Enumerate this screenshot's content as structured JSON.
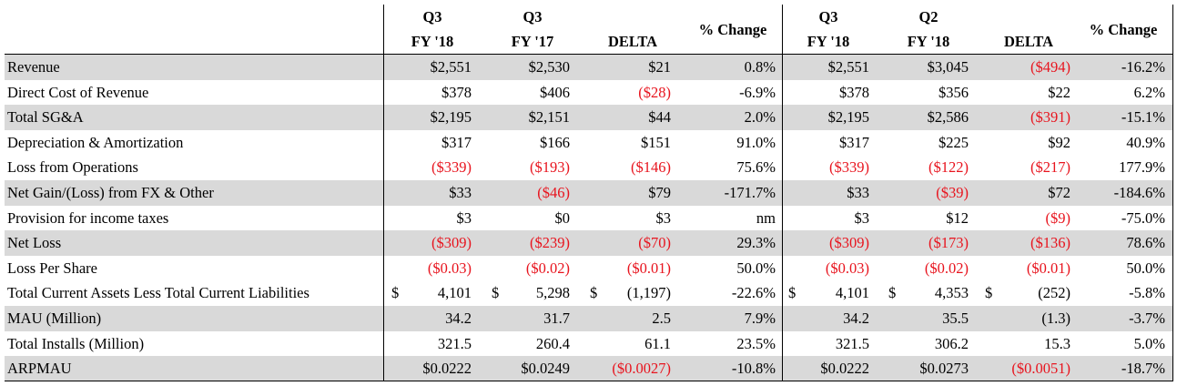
{
  "colors": {
    "shade": "#d9d9d9",
    "negative": "#e8141e",
    "rule": "#000000"
  },
  "headers": {
    "q3fy18_a_l1": "Q3",
    "q3fy18_a_l2": "FY '18",
    "q3fy17_l1": "Q3",
    "q3fy17_l2": "FY '17",
    "delta_a": "DELTA",
    "pct_a": "% Change",
    "q3fy18_b_l1": "Q3",
    "q3fy18_b_l2": "FY '18",
    "q2fy18_l1": "Q2",
    "q2fy18_l2": "FY '18",
    "delta_b": "DELTA",
    "pct_b": "% Change"
  },
  "rows": [
    {
      "label": "Revenue",
      "shade": true,
      "v": [
        "$2,551",
        "$2,530",
        "$21",
        "0.8%",
        "$2,551",
        "$3,045",
        "($494)",
        "-16.2%"
      ],
      "neg": [
        false,
        false,
        false,
        false,
        false,
        false,
        true,
        false
      ]
    },
    {
      "label": "Direct Cost of Revenue",
      "shade": false,
      "v": [
        "$378",
        "$406",
        "($28)",
        "-6.9%",
        "$378",
        "$356",
        "$22",
        "6.2%"
      ],
      "neg": [
        false,
        false,
        true,
        false,
        false,
        false,
        false,
        false
      ]
    },
    {
      "label": "Total SG&A",
      "shade": true,
      "v": [
        "$2,195",
        "$2,151",
        "$44",
        "2.0%",
        "$2,195",
        "$2,586",
        "($391)",
        "-15.1%"
      ],
      "neg": [
        false,
        false,
        false,
        false,
        false,
        false,
        true,
        false
      ]
    },
    {
      "label": "Depreciation & Amortization",
      "shade": false,
      "v": [
        "$317",
        "$166",
        "$151",
        "91.0%",
        "$317",
        "$225",
        "$92",
        "40.9%"
      ],
      "neg": [
        false,
        false,
        false,
        false,
        false,
        false,
        false,
        false
      ]
    },
    {
      "label": "Loss from Operations",
      "shade": false,
      "v": [
        "($339)",
        "($193)",
        "($146)",
        "75.6%",
        "($339)",
        "($122)",
        "($217)",
        "177.9%"
      ],
      "neg": [
        true,
        true,
        true,
        false,
        true,
        true,
        true,
        false
      ]
    },
    {
      "label": "Net Gain/(Loss) from FX & Other",
      "shade": true,
      "v": [
        "$33",
        "($46)",
        "$79",
        "-171.7%",
        "$33",
        "($39)",
        "$72",
        "-184.6%"
      ],
      "neg": [
        false,
        true,
        false,
        false,
        false,
        true,
        false,
        false
      ]
    },
    {
      "label": "Provision for income taxes",
      "shade": false,
      "v": [
        "$3",
        "$0",
        "$3",
        "nm",
        "$3",
        "$12",
        "($9)",
        "-75.0%"
      ],
      "neg": [
        false,
        false,
        false,
        false,
        false,
        false,
        true,
        false
      ]
    },
    {
      "label": "Net Loss",
      "shade": true,
      "v": [
        "($309)",
        "($239)",
        "($70)",
        "29.3%",
        "($309)",
        "($173)",
        "($136)",
        "78.6%"
      ],
      "neg": [
        true,
        true,
        true,
        false,
        true,
        true,
        true,
        false
      ]
    },
    {
      "label": "Loss Per Share",
      "shade": false,
      "v": [
        "($0.03)",
        "($0.02)",
        "($0.01)",
        "50.0%",
        "($0.03)",
        "($0.02)",
        "($0.01)",
        "50.0%"
      ],
      "neg": [
        true,
        true,
        true,
        false,
        true,
        true,
        true,
        false
      ]
    },
    {
      "label": "Total Current Assets Less Total Current Liabilities",
      "shade": false,
      "dollar": true,
      "v": [
        "4,101",
        "5,298",
        "(1,197)",
        "-22.6%",
        "4,101",
        "4,353",
        "(252)",
        "-5.8%"
      ],
      "neg": [
        false,
        false,
        false,
        false,
        false,
        false,
        false,
        false
      ]
    },
    {
      "label": "MAU (Million)",
      "shade": true,
      "v": [
        "34.2",
        "31.7",
        "2.5",
        "7.9%",
        "34.2",
        "35.5",
        "(1.3)",
        "-3.7%"
      ],
      "neg": [
        false,
        false,
        false,
        false,
        false,
        false,
        false,
        false
      ]
    },
    {
      "label": "Total Installs (Million)",
      "shade": false,
      "v": [
        "321.5",
        "260.4",
        "61.1",
        "23.5%",
        "321.5",
        "306.2",
        "15.3",
        "5.0%"
      ],
      "neg": [
        false,
        false,
        false,
        false,
        false,
        false,
        false,
        false
      ]
    },
    {
      "label": "ARPMAU",
      "shade": true,
      "v": [
        "$0.0222",
        "$0.0249",
        "($0.0027)",
        "-10.8%",
        "$0.0222",
        "$0.0273",
        "($0.0051)",
        "-18.7%"
      ],
      "neg": [
        false,
        false,
        true,
        false,
        false,
        false,
        true,
        false
      ]
    }
  ],
  "dollar_sign": "$"
}
